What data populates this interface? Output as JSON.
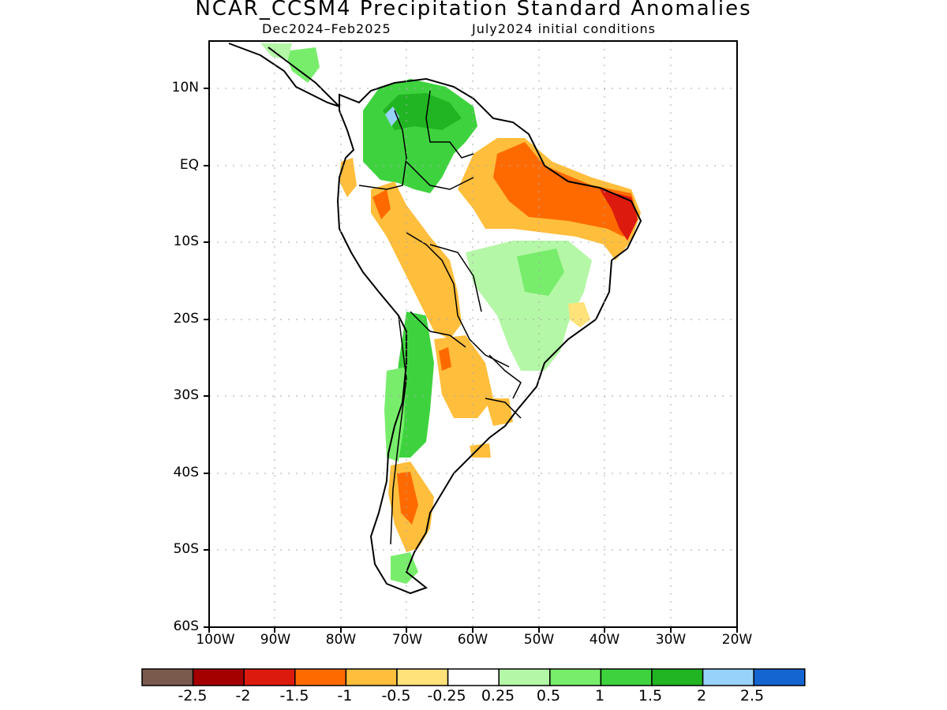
{
  "header": {
    "title": "NCAR_CCSM4 Precipitation Standard Anomalies",
    "season": "Dec2024–Feb2025",
    "init": "July2024 initial conditions"
  },
  "axes": {
    "lat_labels": [
      "10N",
      "EQ",
      "10S",
      "20S",
      "30S",
      "40S",
      "50S",
      "60S"
    ],
    "lon_labels": [
      "100W",
      "90W",
      "80W",
      "70W",
      "60W",
      "50W",
      "40W",
      "30W",
      "20W"
    ]
  },
  "colorbar": {
    "colors": [
      "#7b5a4e",
      "#a50000",
      "#dd1a0e",
      "#ff6a00",
      "#ffbe3c",
      "#ffe27a",
      "#ffffff",
      "#b4f7a6",
      "#78ed6c",
      "#3ed33e",
      "#22b523",
      "#96d2fa",
      "#1464d2"
    ],
    "labels": [
      "-2.5",
      "-2",
      "-1.5",
      "-1",
      "-0.5",
      "-0.25",
      "0.25",
      "0.5",
      "1",
      "1.5",
      "2",
      "2.5"
    ]
  }
}
